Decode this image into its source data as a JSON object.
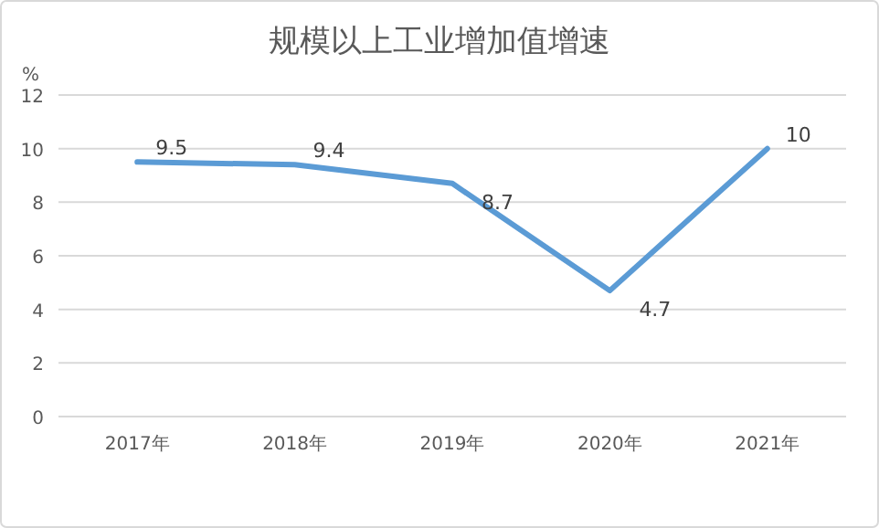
{
  "chart_data": {
    "type": "line",
    "title": "规模以上工业增加值增速",
    "ylabel": "%",
    "categories": [
      "2017年",
      "2018年",
      "2019年",
      "2020年",
      "2021年"
    ],
    "series": [
      {
        "color": "#5b9bd5",
        "values": [
          9.5,
          9.4,
          8.7,
          4.7,
          10
        ]
      }
    ],
    "ylim": [
      0,
      12
    ],
    "yticks": [
      0,
      2,
      4,
      6,
      8,
      10,
      12
    ],
    "grid": "y",
    "data_labels": true,
    "marker": "none",
    "line_style": "solid"
  }
}
